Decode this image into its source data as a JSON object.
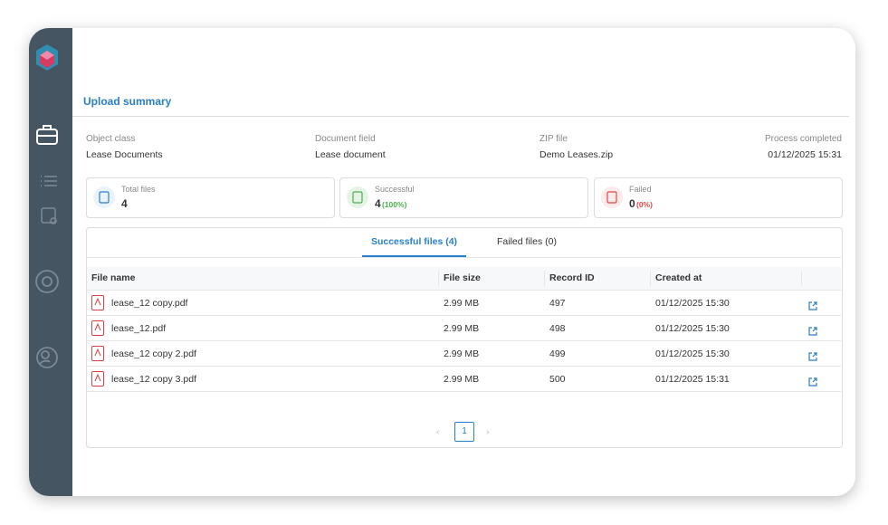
{
  "header": {
    "title": "Upload summary"
  },
  "info": [
    {
      "label": "Object class",
      "value": "Lease Documents"
    },
    {
      "label": "Document field",
      "value": "Lease document"
    },
    {
      "label": "ZIP file",
      "value": "Demo Leases.zip"
    },
    {
      "label": "Process completed",
      "value": "01/12/2025 15:31"
    }
  ],
  "stats": [
    {
      "label": "Total files",
      "value": "4"
    },
    {
      "label": "Successful",
      "value": "4",
      "percent": "(100%)"
    },
    {
      "label": "Failed",
      "value": "0",
      "percent": "(0%)"
    }
  ],
  "tabs": [
    "Successful files (4)",
    "Failed files (0)"
  ],
  "table": {
    "columns": [
      "File name",
      "File size",
      "Record ID",
      "Created at"
    ],
    "rows": [
      [
        "lease_12 copy.pdf",
        "2.99 MB",
        "497",
        "01/12/2025 15:30"
      ],
      [
        "lease_12.pdf",
        "2.99 MB",
        "498",
        "01/12/2025 15:30"
      ],
      [
        "lease_12 copy 2.pdf",
        "2.99 MB",
        "499",
        "01/12/2025 15:30"
      ],
      [
        "lease_12 copy 3.pdf",
        "2.99 MB",
        "500",
        "01/12/2025 15:31"
      ]
    ]
  },
  "pagination": {
    "current": "1"
  }
}
